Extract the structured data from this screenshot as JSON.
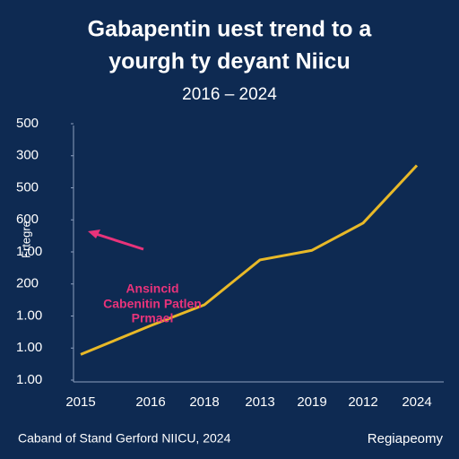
{
  "chart_data": {
    "type": "line",
    "title": [
      "Gabapentin uest trend to a",
      "yourgh ty deyant Niicu"
    ],
    "subtitle": "2016 – 2024",
    "ylabel": "Frtegre",
    "annotation": [
      "Ansincid",
      "Cabenitin Patlen",
      "Prmael"
    ],
    "source": "Caband of Stand Gerford NIICU, 2024",
    "brand": "Regiapeomy",
    "categories": [
      "2015",
      "2016",
      "2018",
      "2013",
      "2019",
      "2012",
      "2024"
    ],
    "series": [
      {
        "name": "Gabapentin",
        "color": "#e8b928",
        "values": [
          0.8,
          1.7,
          2.35,
          3.75,
          4.05,
          4.9,
          6.7
        ]
      }
    ],
    "ylim": [
      0,
      8
    ],
    "yticks": [
      {
        "value": 0,
        "label": "1.00"
      },
      {
        "value": 1,
        "label": "1.00"
      },
      {
        "value": 2,
        "label": "1.00"
      },
      {
        "value": 3,
        "label": "200"
      },
      {
        "value": 4,
        "label": "1.00"
      },
      {
        "value": 5,
        "label": "600"
      },
      {
        "value": 6,
        "label": "500"
      },
      {
        "value": 7,
        "label": "300"
      },
      {
        "value": 8,
        "label": "500"
      }
    ],
    "annotation_color": "#e8337a"
  }
}
